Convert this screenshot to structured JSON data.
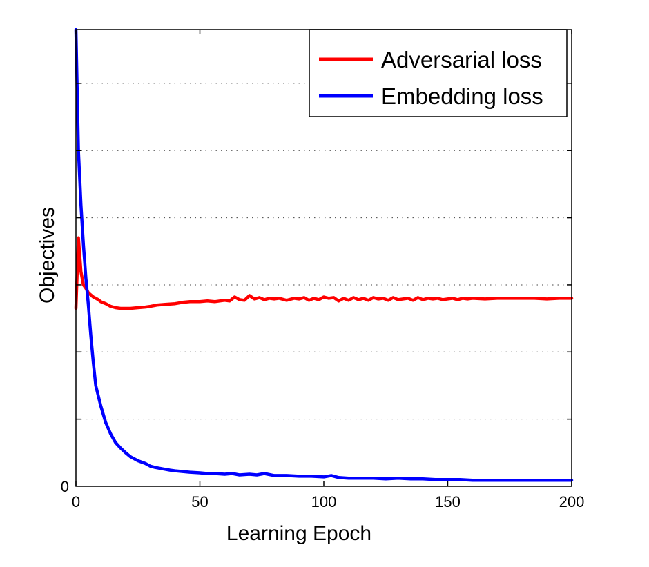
{
  "chart_data": {
    "type": "line",
    "title": "",
    "xlabel": "Learning Epoch",
    "ylabel": "Objectives",
    "xlim": [
      0,
      200
    ],
    "ylim": [
      0,
      6.8
    ],
    "x_ticks": [
      0,
      50,
      100,
      150,
      200
    ],
    "y_ticks": [
      0
    ],
    "y_gridlines": [
      1,
      2,
      3,
      4,
      5,
      6
    ],
    "grid": "dotted horizontal",
    "legend": "top-right",
    "series": [
      {
        "name": "Adversarial loss",
        "color": "#ff0000",
        "x": [
          0,
          1,
          2,
          3,
          4,
          5,
          6,
          7,
          8,
          9,
          10,
          12,
          14,
          16,
          18,
          20,
          22,
          25,
          28,
          30,
          33,
          36,
          40,
          43,
          46,
          50,
          53,
          56,
          60,
          62,
          64,
          66,
          68,
          70,
          72,
          74,
          76,
          78,
          80,
          82,
          85,
          88,
          90,
          92,
          94,
          96,
          98,
          100,
          102,
          104,
          106,
          108,
          110,
          112,
          114,
          116,
          118,
          120,
          122,
          124,
          126,
          128,
          130,
          132,
          134,
          136,
          138,
          140,
          142,
          144,
          146,
          148,
          150,
          152,
          154,
          156,
          158,
          160,
          165,
          170,
          175,
          180,
          185,
          190,
          195,
          200
        ],
        "values": [
          2.65,
          3.7,
          3.2,
          3.0,
          2.95,
          2.88,
          2.85,
          2.82,
          2.8,
          2.78,
          2.75,
          2.72,
          2.68,
          2.66,
          2.65,
          2.65,
          2.65,
          2.66,
          2.67,
          2.68,
          2.7,
          2.71,
          2.72,
          2.74,
          2.75,
          2.75,
          2.76,
          2.75,
          2.77,
          2.76,
          2.82,
          2.78,
          2.77,
          2.84,
          2.79,
          2.81,
          2.78,
          2.8,
          2.79,
          2.8,
          2.77,
          2.8,
          2.79,
          2.81,
          2.77,
          2.8,
          2.78,
          2.82,
          2.8,
          2.81,
          2.76,
          2.8,
          2.77,
          2.81,
          2.78,
          2.8,
          2.77,
          2.81,
          2.79,
          2.8,
          2.77,
          2.81,
          2.78,
          2.79,
          2.8,
          2.77,
          2.81,
          2.78,
          2.8,
          2.79,
          2.8,
          2.78,
          2.79,
          2.8,
          2.78,
          2.8,
          2.79,
          2.8,
          2.79,
          2.8,
          2.8,
          2.8,
          2.8,
          2.79,
          2.8,
          2.8
        ]
      },
      {
        "name": "Embedding loss",
        "color": "#0000ff",
        "x": [
          0,
          1,
          2,
          3,
          4,
          5,
          6,
          7,
          8,
          10,
          12,
          14,
          16,
          18,
          20,
          22,
          25,
          28,
          30,
          32,
          35,
          38,
          40,
          43,
          46,
          50,
          53,
          56,
          60,
          63,
          66,
          70,
          73,
          76,
          80,
          85,
          90,
          95,
          100,
          103,
          106,
          110,
          115,
          120,
          125,
          130,
          135,
          140,
          145,
          150,
          155,
          160,
          165,
          170,
          180,
          190,
          200
        ],
        "values": [
          6.8,
          5.0,
          4.2,
          3.6,
          3.1,
          2.7,
          2.25,
          1.85,
          1.5,
          1.2,
          0.95,
          0.78,
          0.65,
          0.57,
          0.5,
          0.44,
          0.38,
          0.34,
          0.3,
          0.28,
          0.26,
          0.24,
          0.23,
          0.22,
          0.21,
          0.2,
          0.19,
          0.19,
          0.18,
          0.19,
          0.17,
          0.18,
          0.17,
          0.19,
          0.16,
          0.16,
          0.15,
          0.15,
          0.14,
          0.16,
          0.13,
          0.12,
          0.12,
          0.12,
          0.11,
          0.12,
          0.11,
          0.11,
          0.1,
          0.1,
          0.1,
          0.09,
          0.09,
          0.09,
          0.09,
          0.09,
          0.09
        ]
      }
    ]
  }
}
